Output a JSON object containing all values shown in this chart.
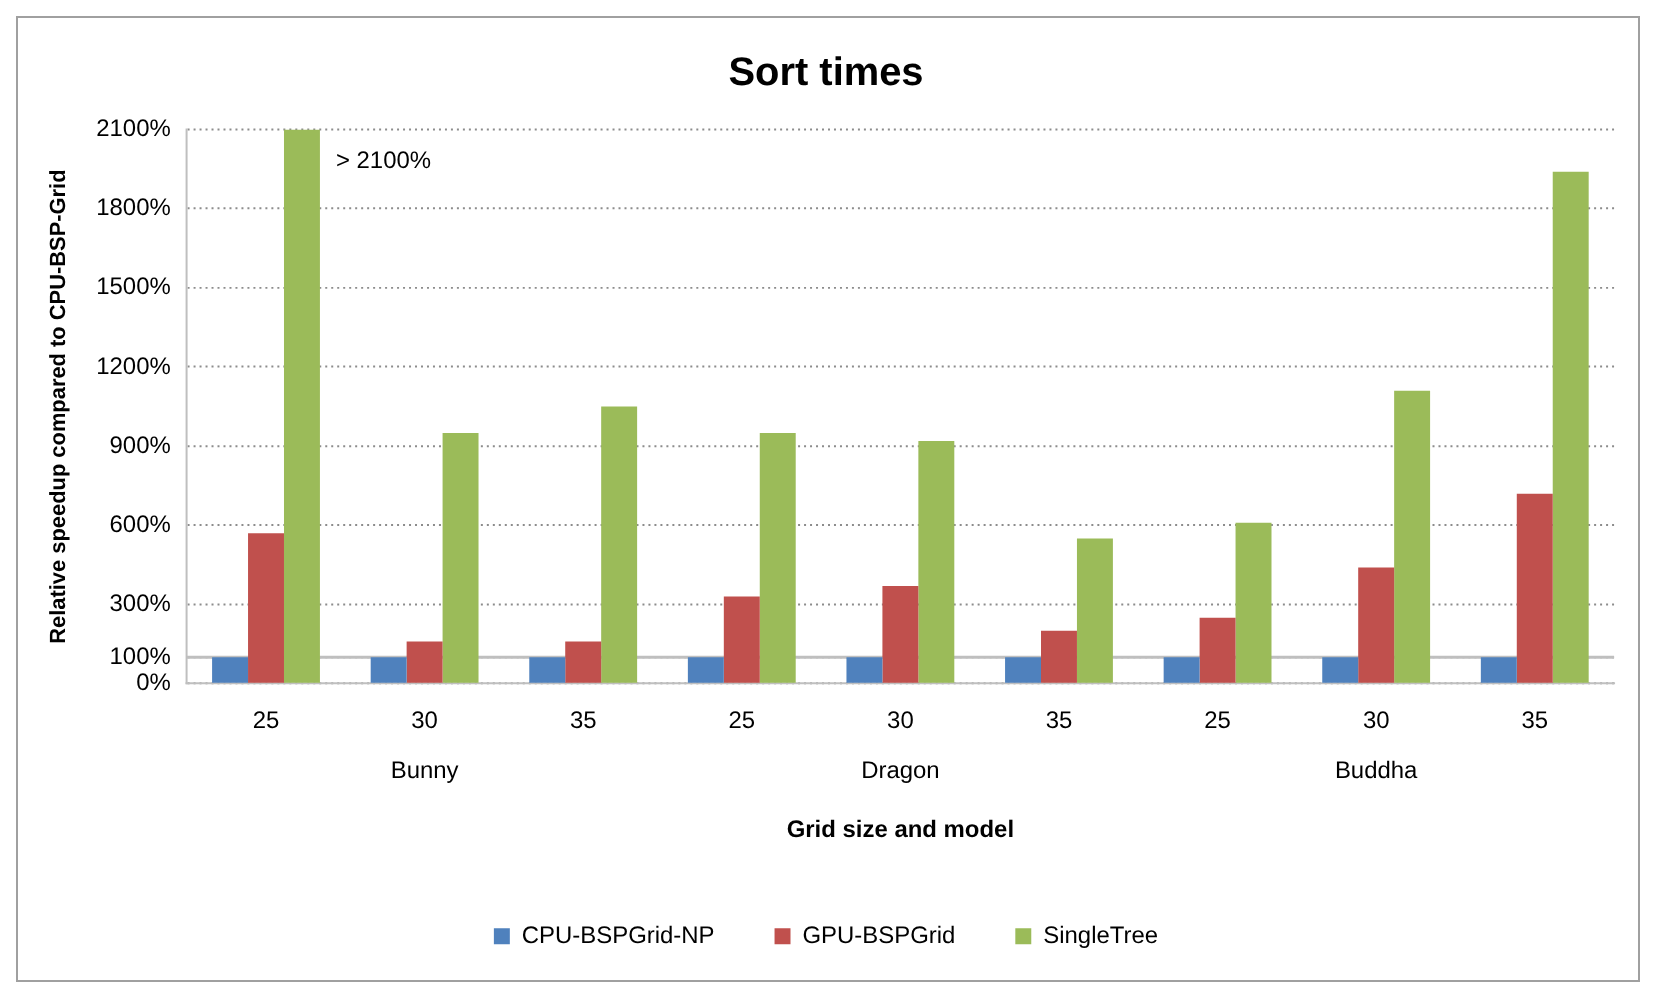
{
  "chart_data": {
    "type": "bar",
    "title": "Sort times",
    "xlabel": "Grid size and model",
    "ylabel": "Relative speedup compared to CPU-BSP-Grid",
    "categories": [
      "25",
      "30",
      "35",
      "25",
      "30",
      "35",
      "25",
      "30",
      "35"
    ],
    "series": [
      {
        "name": "CPU-BSPGrid-NP",
        "color": "#4f81bd",
        "values": [
          100,
          100,
          100,
          100,
          100,
          100,
          100,
          100,
          100
        ]
      },
      {
        "name": "GPU-BSPGrid",
        "color": "#c0504d",
        "values": [
          570,
          160,
          160,
          330,
          370,
          200,
          250,
          440,
          720
        ]
      },
      {
        "name": "SingleTree",
        "color": "#9bbb59",
        "values": [
          2100,
          950,
          1050,
          950,
          920,
          550,
          610,
          1110,
          1940
        ]
      }
    ],
    "ylim": [
      0,
      2100
    ],
    "yticks": [
      {
        "value": 0,
        "label": "0%"
      },
      {
        "value": 100,
        "label": "100%"
      },
      {
        "value": 300,
        "label": "300%"
      },
      {
        "value": 600,
        "label": "600%"
      },
      {
        "value": 900,
        "label": "900%"
      },
      {
        "value": 1200,
        "label": "1200%"
      },
      {
        "value": 1500,
        "label": "1500%"
      },
      {
        "value": 1800,
        "label": "1800%"
      },
      {
        "value": 2100,
        "label": "2100%"
      }
    ],
    "ref_lines": [
      {
        "axis": "y",
        "value": 100,
        "color": "#bfbfbf"
      }
    ],
    "annotations": [
      "> 2100%",
      "Bunny",
      "Dragon",
      "Buddha"
    ],
    "grid": "y",
    "legend": "bottom"
  }
}
